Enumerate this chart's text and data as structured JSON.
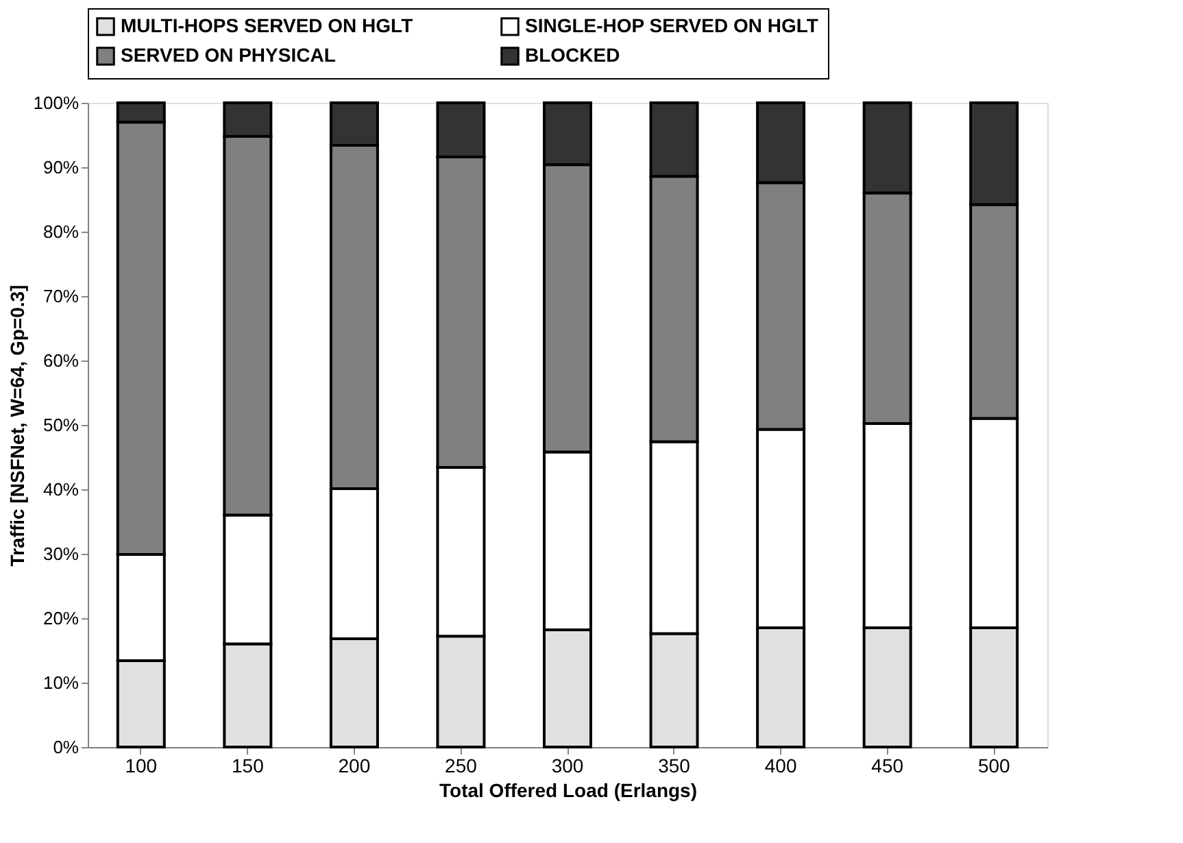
{
  "chart_data": {
    "type": "bar",
    "stacked": true,
    "xlabel": "Total Offered Load (Erlangs)",
    "ylabel": "Traffic [NSFNet, W=64, Gp=0.3]",
    "categories": [
      "100",
      "150",
      "200",
      "250",
      "300",
      "350",
      "400",
      "450",
      "500"
    ],
    "series": [
      {
        "name": "MULTI-HOPS SERVED ON HGLT",
        "color": "#e0e0e0",
        "values": [
          13.4,
          16.0,
          16.8,
          17.2,
          18.2,
          17.6,
          18.5,
          18.5,
          18.5
        ]
      },
      {
        "name": "SINGLE-HOP SERVED ON HGLT",
        "color": "#ffffff",
        "values": [
          16.5,
          20.0,
          23.3,
          26.2,
          27.6,
          29.8,
          30.8,
          31.7,
          32.5
        ]
      },
      {
        "name": "SERVED ON PHYSICAL",
        "color": "#808080",
        "values": [
          67.1,
          58.8,
          53.3,
          48.2,
          44.6,
          41.2,
          38.3,
          35.8,
          33.2
        ]
      },
      {
        "name": "BLOCKED",
        "color": "#333333",
        "values": [
          3.0,
          5.2,
          6.6,
          8.4,
          9.6,
          11.4,
          12.4,
          14.0,
          15.8
        ]
      }
    ],
    "ylim": [
      0,
      100
    ],
    "yticks": [
      {
        "value": 0,
        "label": "0%"
      },
      {
        "value": 10,
        "label": "10%"
      },
      {
        "value": 20,
        "label": "20%"
      },
      {
        "value": 30,
        "label": "30%"
      },
      {
        "value": 40,
        "label": "40%"
      },
      {
        "value": 50,
        "label": "50%"
      },
      {
        "value": 60,
        "label": "60%"
      },
      {
        "value": 70,
        "label": "70%"
      },
      {
        "value": 80,
        "label": "80%"
      },
      {
        "value": 90,
        "label": "90%"
      },
      {
        "value": 100,
        "label": "100%"
      }
    ],
    "grid": false,
    "legend": "top"
  }
}
